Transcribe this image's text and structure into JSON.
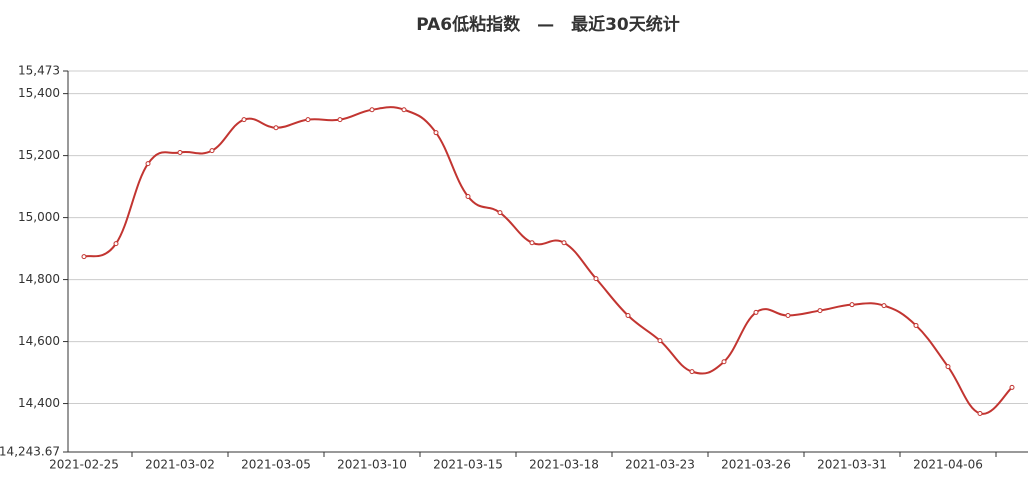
{
  "chart_data": {
    "type": "line",
    "title": "PA6低粘指数　—　最近30天统计",
    "categories": [
      "2021-02-25",
      null,
      null,
      "2021-03-02",
      null,
      null,
      "2021-03-05",
      null,
      null,
      "2021-03-10",
      null,
      null,
      "2021-03-15",
      null,
      null,
      "2021-03-18",
      null,
      null,
      "2021-03-23",
      null,
      null,
      "2021-03-26",
      null,
      null,
      "2021-03-31",
      null,
      null,
      "2021-04-06",
      null,
      null
    ],
    "series": [
      {
        "color": "#c23531",
        "values": [
          14874,
          14916,
          15174,
          15210,
          15216,
          15316,
          15290,
          15316,
          15316,
          15348,
          15348,
          15274,
          15068,
          15016,
          14919,
          14919,
          14803,
          14684,
          14603,
          14503,
          14535,
          14694,
          14684,
          14700,
          14719,
          14716,
          14652,
          14519,
          14368,
          14452
        ]
      }
    ],
    "ylim": [
      14243.67,
      15473
    ],
    "yticks": [
      {
        "value": 14243.67,
        "label": "14,243.67"
      },
      {
        "value": 14400,
        "label": "14,400"
      },
      {
        "value": 14600,
        "label": "14,600"
      },
      {
        "value": 14800,
        "label": "14,800"
      },
      {
        "value": 15000,
        "label": "15,000"
      },
      {
        "value": 15200,
        "label": "15,200"
      },
      {
        "value": 15400,
        "label": "15,400"
      },
      {
        "value": 15473,
        "label": "15,473"
      }
    ],
    "grid": true
  }
}
